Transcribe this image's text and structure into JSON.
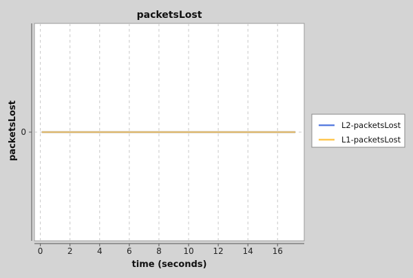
{
  "chart_data": {
    "type": "line",
    "title": "packetsLost",
    "xlabel": "time (seconds)",
    "ylabel": "packetsLost",
    "xlim": [
      -0.4,
      17.8
    ],
    "ylim": [
      -1,
      1
    ],
    "x_ticks": [
      0,
      2,
      4,
      6,
      8,
      10,
      12,
      14,
      16
    ],
    "y_ticks": [
      0
    ],
    "grid": true,
    "legend": "right",
    "series": [
      {
        "name": "L2-packetsLost",
        "color": "#5b7fe0",
        "x": [
          0.1,
          17.2
        ],
        "y": [
          0,
          0
        ]
      },
      {
        "name": "L1-packetsLost",
        "color": "#ffc74f",
        "x": [
          0.1,
          17.2
        ],
        "y": [
          0,
          0
        ]
      }
    ]
  }
}
